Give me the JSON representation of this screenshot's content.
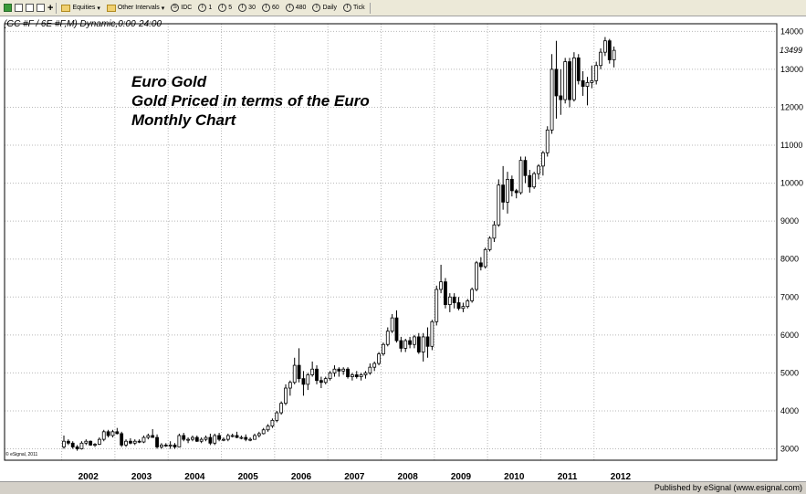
{
  "toolbar": {
    "equities_label": "Equities",
    "intervals_label": "Other Intervals",
    "idc_label": "IDC",
    "interval_buttons": [
      "1",
      "5",
      "30",
      "60",
      "480",
      "Daily",
      "Tick"
    ]
  },
  "footer": {
    "text": "Published by eSignal (www.esignal.com)"
  },
  "chart_data": {
    "type": "candlestick",
    "header": "(GC #F / 6E #F,M) Dynamic,0:00-24:00",
    "title_lines": [
      "Euro Gold",
      "Gold Priced in terms of the Euro",
      "Monthly Chart"
    ],
    "copyright": "© eSignal, 2011",
    "ylim": [
      2700,
      14200
    ],
    "y_ticks": [
      3000,
      4000,
      5000,
      6000,
      7000,
      8000,
      9000,
      10000,
      11000,
      12000,
      13000,
      14000
    ],
    "y_tick_labels": [
      "3000",
      "4000",
      "5000",
      "6000",
      "7000",
      "8000",
      "9000",
      "10000",
      "11000",
      "12000",
      "13000",
      "14000"
    ],
    "last_value": 13499,
    "last_value_label": "13499",
    "x_labels": [
      "2002",
      "2003",
      "2004",
      "2005",
      "2006",
      "2007",
      "2008",
      "2009",
      "2010",
      "2011",
      "2012"
    ],
    "candles": [
      {
        "o": 3050,
        "h": 3350,
        "l": 3000,
        "c": 3200
      },
      {
        "o": 3200,
        "h": 3250,
        "l": 3100,
        "c": 3150
      },
      {
        "o": 3150,
        "h": 3200,
        "l": 3000,
        "c": 3050
      },
      {
        "o": 3050,
        "h": 3100,
        "l": 2950,
        "c": 3000
      },
      {
        "o": 3000,
        "h": 3200,
        "l": 2980,
        "c": 3150
      },
      {
        "o": 3150,
        "h": 3250,
        "l": 3100,
        "c": 3200
      },
      {
        "o": 3200,
        "h": 3220,
        "l": 3080,
        "c": 3100
      },
      {
        "o": 3100,
        "h": 3150,
        "l": 3050,
        "c": 3120
      },
      {
        "o": 3120,
        "h": 3300,
        "l": 3100,
        "c": 3250
      },
      {
        "o": 3250,
        "h": 3500,
        "l": 3200,
        "c": 3450
      },
      {
        "o": 3450,
        "h": 3500,
        "l": 3300,
        "c": 3350
      },
      {
        "o": 3350,
        "h": 3500,
        "l": 3300,
        "c": 3450
      },
      {
        "o": 3450,
        "h": 3550,
        "l": 3380,
        "c": 3400
      },
      {
        "o": 3400,
        "h": 3450,
        "l": 3050,
        "c": 3100
      },
      {
        "o": 3100,
        "h": 3250,
        "l": 3050,
        "c": 3200
      },
      {
        "o": 3200,
        "h": 3280,
        "l": 3120,
        "c": 3150
      },
      {
        "o": 3150,
        "h": 3250,
        "l": 3100,
        "c": 3200
      },
      {
        "o": 3200,
        "h": 3250,
        "l": 3150,
        "c": 3180
      },
      {
        "o": 3180,
        "h": 3350,
        "l": 3150,
        "c": 3300
      },
      {
        "o": 3300,
        "h": 3400,
        "l": 3250,
        "c": 3350
      },
      {
        "o": 3350,
        "h": 3520,
        "l": 3300,
        "c": 3300
      },
      {
        "o": 3300,
        "h": 3380,
        "l": 3000,
        "c": 3050
      },
      {
        "o": 3050,
        "h": 3150,
        "l": 3000,
        "c": 3100
      },
      {
        "o": 3100,
        "h": 3150,
        "l": 3050,
        "c": 3080
      },
      {
        "o": 3080,
        "h": 3200,
        "l": 3000,
        "c": 3100
      },
      {
        "o": 3100,
        "h": 3150,
        "l": 3000,
        "c": 3050
      },
      {
        "o": 3050,
        "h": 3400,
        "l": 3050,
        "c": 3350
      },
      {
        "o": 3350,
        "h": 3420,
        "l": 3200,
        "c": 3250
      },
      {
        "o": 3250,
        "h": 3300,
        "l": 3150,
        "c": 3250
      },
      {
        "o": 3250,
        "h": 3350,
        "l": 3200,
        "c": 3300
      },
      {
        "o": 3300,
        "h": 3350,
        "l": 3180,
        "c": 3200
      },
      {
        "o": 3200,
        "h": 3300,
        "l": 3150,
        "c": 3250
      },
      {
        "o": 3250,
        "h": 3350,
        "l": 3200,
        "c": 3300
      },
      {
        "o": 3300,
        "h": 3400,
        "l": 3100,
        "c": 3150
      },
      {
        "o": 3150,
        "h": 3400,
        "l": 3100,
        "c": 3350
      },
      {
        "o": 3350,
        "h": 3420,
        "l": 3200,
        "c": 3250
      },
      {
        "o": 3250,
        "h": 3300,
        "l": 3200,
        "c": 3250
      },
      {
        "o": 3250,
        "h": 3400,
        "l": 3200,
        "c": 3350
      },
      {
        "o": 3350,
        "h": 3400,
        "l": 3300,
        "c": 3350
      },
      {
        "o": 3350,
        "h": 3450,
        "l": 3280,
        "c": 3300
      },
      {
        "o": 3300,
        "h": 3350,
        "l": 3250,
        "c": 3300
      },
      {
        "o": 3300,
        "h": 3380,
        "l": 3200,
        "c": 3250
      },
      {
        "o": 3250,
        "h": 3300,
        "l": 3200,
        "c": 3250
      },
      {
        "o": 3250,
        "h": 3400,
        "l": 3250,
        "c": 3350
      },
      {
        "o": 3350,
        "h": 3450,
        "l": 3300,
        "c": 3400
      },
      {
        "o": 3400,
        "h": 3550,
        "l": 3380,
        "c": 3500
      },
      {
        "o": 3500,
        "h": 3650,
        "l": 3450,
        "c": 3600
      },
      {
        "o": 3600,
        "h": 3800,
        "l": 3550,
        "c": 3750
      },
      {
        "o": 3750,
        "h": 4000,
        "l": 3700,
        "c": 3950
      },
      {
        "o": 3950,
        "h": 4250,
        "l": 3900,
        "c": 4200
      },
      {
        "o": 4200,
        "h": 4700,
        "l": 4150,
        "c": 4600
      },
      {
        "o": 4600,
        "h": 4800,
        "l": 4400,
        "c": 4750
      },
      {
        "o": 4750,
        "h": 5400,
        "l": 4700,
        "c": 5200
      },
      {
        "o": 5200,
        "h": 5650,
        "l": 4750,
        "c": 4850
      },
      {
        "o": 4850,
        "h": 5050,
        "l": 4400,
        "c": 4700
      },
      {
        "o": 4700,
        "h": 5000,
        "l": 4550,
        "c": 4950
      },
      {
        "o": 4950,
        "h": 5300,
        "l": 4900,
        "c": 5100
      },
      {
        "o": 5100,
        "h": 5200,
        "l": 4700,
        "c": 4800
      },
      {
        "o": 4800,
        "h": 4900,
        "l": 4600,
        "c": 4750
      },
      {
        "o": 4750,
        "h": 4900,
        "l": 4700,
        "c": 4850
      },
      {
        "o": 4850,
        "h": 5050,
        "l": 4800,
        "c": 5000
      },
      {
        "o": 5000,
        "h": 5200,
        "l": 4900,
        "c": 5100
      },
      {
        "o": 5100,
        "h": 5150,
        "l": 4900,
        "c": 5050
      },
      {
        "o": 5050,
        "h": 5150,
        "l": 4950,
        "c": 5100
      },
      {
        "o": 5100,
        "h": 5150,
        "l": 4850,
        "c": 4900
      },
      {
        "o": 4900,
        "h": 5000,
        "l": 4800,
        "c": 4950
      },
      {
        "o": 4950,
        "h": 5050,
        "l": 4850,
        "c": 4900
      },
      {
        "o": 4900,
        "h": 5000,
        "l": 4800,
        "c": 4950
      },
      {
        "o": 4950,
        "h": 5050,
        "l": 4850,
        "c": 5000
      },
      {
        "o": 5000,
        "h": 5250,
        "l": 4950,
        "c": 5150
      },
      {
        "o": 5150,
        "h": 5300,
        "l": 5050,
        "c": 5250
      },
      {
        "o": 5250,
        "h": 5550,
        "l": 5200,
        "c": 5500
      },
      {
        "o": 5500,
        "h": 5800,
        "l": 5450,
        "c": 5750
      },
      {
        "o": 5750,
        "h": 6200,
        "l": 5700,
        "c": 6100
      },
      {
        "o": 6100,
        "h": 6550,
        "l": 6050,
        "c": 6450
      },
      {
        "o": 6450,
        "h": 6650,
        "l": 5800,
        "c": 5850
      },
      {
        "o": 5850,
        "h": 5950,
        "l": 5550,
        "c": 5650
      },
      {
        "o": 5650,
        "h": 5900,
        "l": 5550,
        "c": 5850
      },
      {
        "o": 5850,
        "h": 5950,
        "l": 5650,
        "c": 5750
      },
      {
        "o": 5750,
        "h": 6000,
        "l": 5650,
        "c": 5950
      },
      {
        "o": 5950,
        "h": 6050,
        "l": 5500,
        "c": 5550
      },
      {
        "o": 5550,
        "h": 6050,
        "l": 5300,
        "c": 5950
      },
      {
        "o": 5950,
        "h": 6200,
        "l": 5400,
        "c": 5700
      },
      {
        "o": 5700,
        "h": 6400,
        "l": 5600,
        "c": 6350
      },
      {
        "o": 6350,
        "h": 7300,
        "l": 6250,
        "c": 7200
      },
      {
        "o": 7200,
        "h": 7850,
        "l": 7100,
        "c": 7400
      },
      {
        "o": 7400,
        "h": 7500,
        "l": 6700,
        "c": 6800
      },
      {
        "o": 6800,
        "h": 7100,
        "l": 6600,
        "c": 7000
      },
      {
        "o": 7000,
        "h": 7100,
        "l": 6700,
        "c": 6850
      },
      {
        "o": 6850,
        "h": 7000,
        "l": 6650,
        "c": 6700
      },
      {
        "o": 6700,
        "h": 6850,
        "l": 6600,
        "c": 6750
      },
      {
        "o": 6750,
        "h": 6950,
        "l": 6700,
        "c": 6900
      },
      {
        "o": 6900,
        "h": 7250,
        "l": 6850,
        "c": 7200
      },
      {
        "o": 7200,
        "h": 7950,
        "l": 7150,
        "c": 7900
      },
      {
        "o": 7900,
        "h": 8050,
        "l": 7700,
        "c": 7800
      },
      {
        "o": 7800,
        "h": 8300,
        "l": 7750,
        "c": 8250
      },
      {
        "o": 8250,
        "h": 8600,
        "l": 8200,
        "c": 8550
      },
      {
        "o": 8550,
        "h": 9000,
        "l": 8450,
        "c": 8900
      },
      {
        "o": 8900,
        "h": 10100,
        "l": 8850,
        "c": 9950
      },
      {
        "o": 9950,
        "h": 10450,
        "l": 9300,
        "c": 9500
      },
      {
        "o": 9500,
        "h": 10300,
        "l": 9200,
        "c": 10100
      },
      {
        "o": 10100,
        "h": 10200,
        "l": 9650,
        "c": 9800
      },
      {
        "o": 9800,
        "h": 9850,
        "l": 9600,
        "c": 9750
      },
      {
        "o": 9750,
        "h": 10700,
        "l": 9700,
        "c": 10600
      },
      {
        "o": 10600,
        "h": 10700,
        "l": 10000,
        "c": 10200
      },
      {
        "o": 10200,
        "h": 10350,
        "l": 9750,
        "c": 9900
      },
      {
        "o": 9900,
        "h": 10300,
        "l": 9850,
        "c": 10250
      },
      {
        "o": 10250,
        "h": 10500,
        "l": 10100,
        "c": 10450
      },
      {
        "o": 10450,
        "h": 10850,
        "l": 10200,
        "c": 10800
      },
      {
        "o": 10800,
        "h": 11500,
        "l": 10700,
        "c": 11400
      },
      {
        "o": 11400,
        "h": 13400,
        "l": 11300,
        "c": 13000
      },
      {
        "o": 13000,
        "h": 13750,
        "l": 11700,
        "c": 12300
      },
      {
        "o": 12300,
        "h": 13000,
        "l": 11800,
        "c": 12200
      },
      {
        "o": 12200,
        "h": 13300,
        "l": 12100,
        "c": 13200
      },
      {
        "o": 13200,
        "h": 13300,
        "l": 12000,
        "c": 12200
      },
      {
        "o": 12200,
        "h": 13450,
        "l": 12150,
        "c": 13300
      },
      {
        "o": 13300,
        "h": 13400,
        "l": 12600,
        "c": 12700
      },
      {
        "o": 12700,
        "h": 12950,
        "l": 12300,
        "c": 12550
      },
      {
        "o": 12550,
        "h": 12800,
        "l": 12050,
        "c": 12650
      },
      {
        "o": 12650,
        "h": 13100,
        "l": 12500,
        "c": 12700
      },
      {
        "o": 12700,
        "h": 13200,
        "l": 12600,
        "c": 13100
      },
      {
        "o": 13100,
        "h": 13550,
        "l": 13000,
        "c": 13450
      },
      {
        "o": 13450,
        "h": 13850,
        "l": 13350,
        "c": 13750
      },
      {
        "o": 13750,
        "h": 13800,
        "l": 13150,
        "c": 13250
      },
      {
        "o": 13250,
        "h": 13600,
        "l": 13050,
        "c": 13499
      }
    ]
  }
}
